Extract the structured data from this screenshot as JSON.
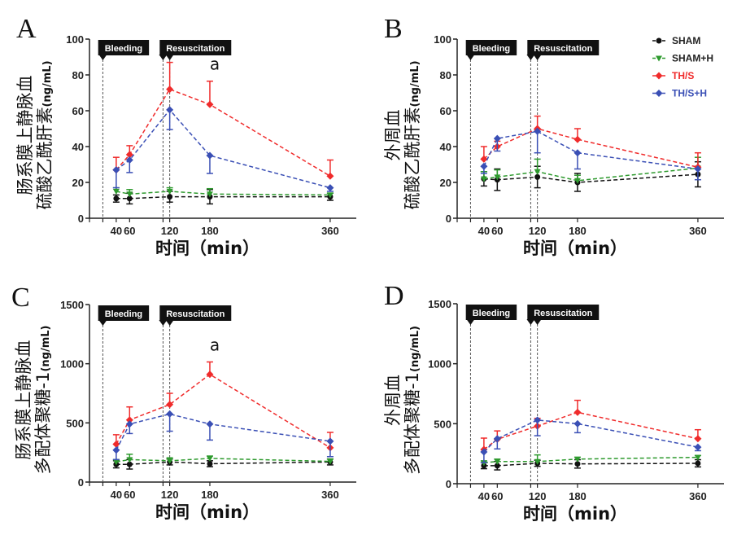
{
  "chart_data": {
    "type": "line",
    "x": [
      40,
      60,
      120,
      180,
      360
    ],
    "x_ticks": [
      "40",
      "60",
      "120",
      "180",
      "360"
    ],
    "xlim": [
      0,
      400
    ],
    "xlabel": "时间（min）",
    "phase_bands": {
      "bleeding": "Bleeding",
      "resuscitation": "Resuscitation"
    },
    "phase_lines_min": [
      20,
      110,
      120
    ],
    "legend": {
      "position": "top-right of panel B",
      "entries": [
        {
          "name": "SHAM",
          "color": "#111111",
          "marker": "circle"
        },
        {
          "name": "SHAM+H",
          "color": "#2e9a2e",
          "marker": "triangle-down"
        },
        {
          "name": "TH/S",
          "color": "#f02b2b",
          "marker": "diamond"
        },
        {
          "name": "TH/S+H",
          "color": "#3a4fb5",
          "marker": "diamond"
        }
      ]
    },
    "panels": [
      {
        "letter": "A",
        "ylabel": [
          "肠系膜上静脉血",
          "硫酸乙酰肝素",
          "(ng/mL)"
        ],
        "ylim": [
          0,
          100
        ],
        "yticks": [
          "0",
          "20",
          "40",
          "60",
          "80",
          "100"
        ],
        "annotation": {
          "text": "a",
          "x": 180
        },
        "series": [
          {
            "name": "SHAM",
            "values": [
              11,
              11,
              12,
              12,
              12
            ],
            "err": [
              2,
              3,
              3,
              4,
              2
            ],
            "err_dir": "both"
          },
          {
            "name": "SHAM+H",
            "values": [
              15,
              13.5,
              15,
              13.5,
              13
            ],
            "err": [
              2,
              2.5,
              2,
              3,
              1
            ],
            "err_dir": "up"
          },
          {
            "name": "TH/S",
            "values": [
              27,
              35.5,
              72,
              63.5,
              23.5
            ],
            "err": [
              7,
              5,
              15,
              13,
              9
            ],
            "err_dir": "up"
          },
          {
            "name": "TH/S+H",
            "values": [
              27,
              32.5,
              60.5,
              35,
              17
            ],
            "err": [
              10,
              7,
              11,
              10,
              2
            ],
            "err_dir": "down"
          }
        ]
      },
      {
        "letter": "B",
        "ylabel": [
          "外周血",
          "硫酸乙酰肝素",
          "(ng/mL)"
        ],
        "ylim": [
          0,
          100
        ],
        "yticks": [
          "0",
          "20",
          "40",
          "60",
          "80",
          "100"
        ],
        "series": [
          {
            "name": "SHAM",
            "values": [
              22,
              21.5,
              23,
              20,
              24.5
            ],
            "err": [
              4,
              6,
              6,
              5,
              7
            ],
            "err_dir": "both"
          },
          {
            "name": "SHAM+H",
            "values": [
              22,
              23,
              26,
              21,
              28
            ],
            "err": [
              4,
              4,
              7,
              3,
              6
            ],
            "err_dir": "up"
          },
          {
            "name": "TH/S",
            "values": [
              33,
              40,
              50,
              44,
              28.5
            ],
            "err": [
              7,
              3,
              7,
              6,
              8
            ],
            "err_dir": "up"
          },
          {
            "name": "TH/S+H",
            "values": [
              29,
              44.5,
              48.5,
              36.5,
              27.5
            ],
            "err": [
              4,
              7,
              12,
              9,
              6
            ],
            "err_dir": "down"
          }
        ]
      },
      {
        "letter": "C",
        "ylabel": [
          "肠系膜上静脉血",
          "多配体聚糖-1",
          "(ng/mL)"
        ],
        "ylim": [
          0,
          1500
        ],
        "yticks": [
          "0",
          "500",
          "1000",
          "1500"
        ],
        "annotation": {
          "text": "a",
          "x": 180
        },
        "series": [
          {
            "name": "SHAM",
            "values": [
              150,
              150,
              170,
              155,
              170
            ],
            "err": [
              30,
              40,
              25,
              25,
              25
            ],
            "err_dir": "both"
          },
          {
            "name": "SHAM+H",
            "values": [
              170,
              190,
              180,
              200,
              175
            ],
            "err": [
              20,
              45,
              25,
              20,
              20
            ],
            "err_dir": "up"
          },
          {
            "name": "TH/S",
            "values": [
              320,
              525,
              655,
              910,
              290
            ],
            "err": [
              80,
              110,
              95,
              105,
              130
            ],
            "err_dir": "up"
          },
          {
            "name": "TH/S+H",
            "values": [
              270,
              490,
              575,
              490,
              345
            ],
            "err": [
              80,
              80,
              145,
              135,
              130
            ],
            "err_dir": "down"
          }
        ]
      },
      {
        "letter": "D",
        "ylabel": [
          "外周血",
          "多配体聚糖-1",
          "(ng/mL)"
        ],
        "ylim": [
          0,
          1500
        ],
        "yticks": [
          "0",
          "500",
          "1000",
          "1500"
        ],
        "series": [
          {
            "name": "SHAM",
            "values": [
              150,
              150,
              170,
              165,
              170
            ],
            "err": [
              25,
              35,
              25,
              35,
              30
            ],
            "err_dir": "both"
          },
          {
            "name": "SHAM+H",
            "values": [
              175,
              185,
              185,
              205,
              220
            ],
            "err": [
              15,
              20,
              55,
              15,
              15
            ],
            "err_dir": "up"
          },
          {
            "name": "TH/S",
            "values": [
              285,
              370,
              480,
              595,
              375
            ],
            "err": [
              95,
              70,
              65,
              100,
              75
            ],
            "err_dir": "up"
          },
          {
            "name": "TH/S+H",
            "values": [
              265,
              375,
              530,
              500,
              305
            ],
            "err": [
              90,
              85,
              130,
              75,
              30
            ],
            "err_dir": "down"
          }
        ]
      }
    ]
  }
}
